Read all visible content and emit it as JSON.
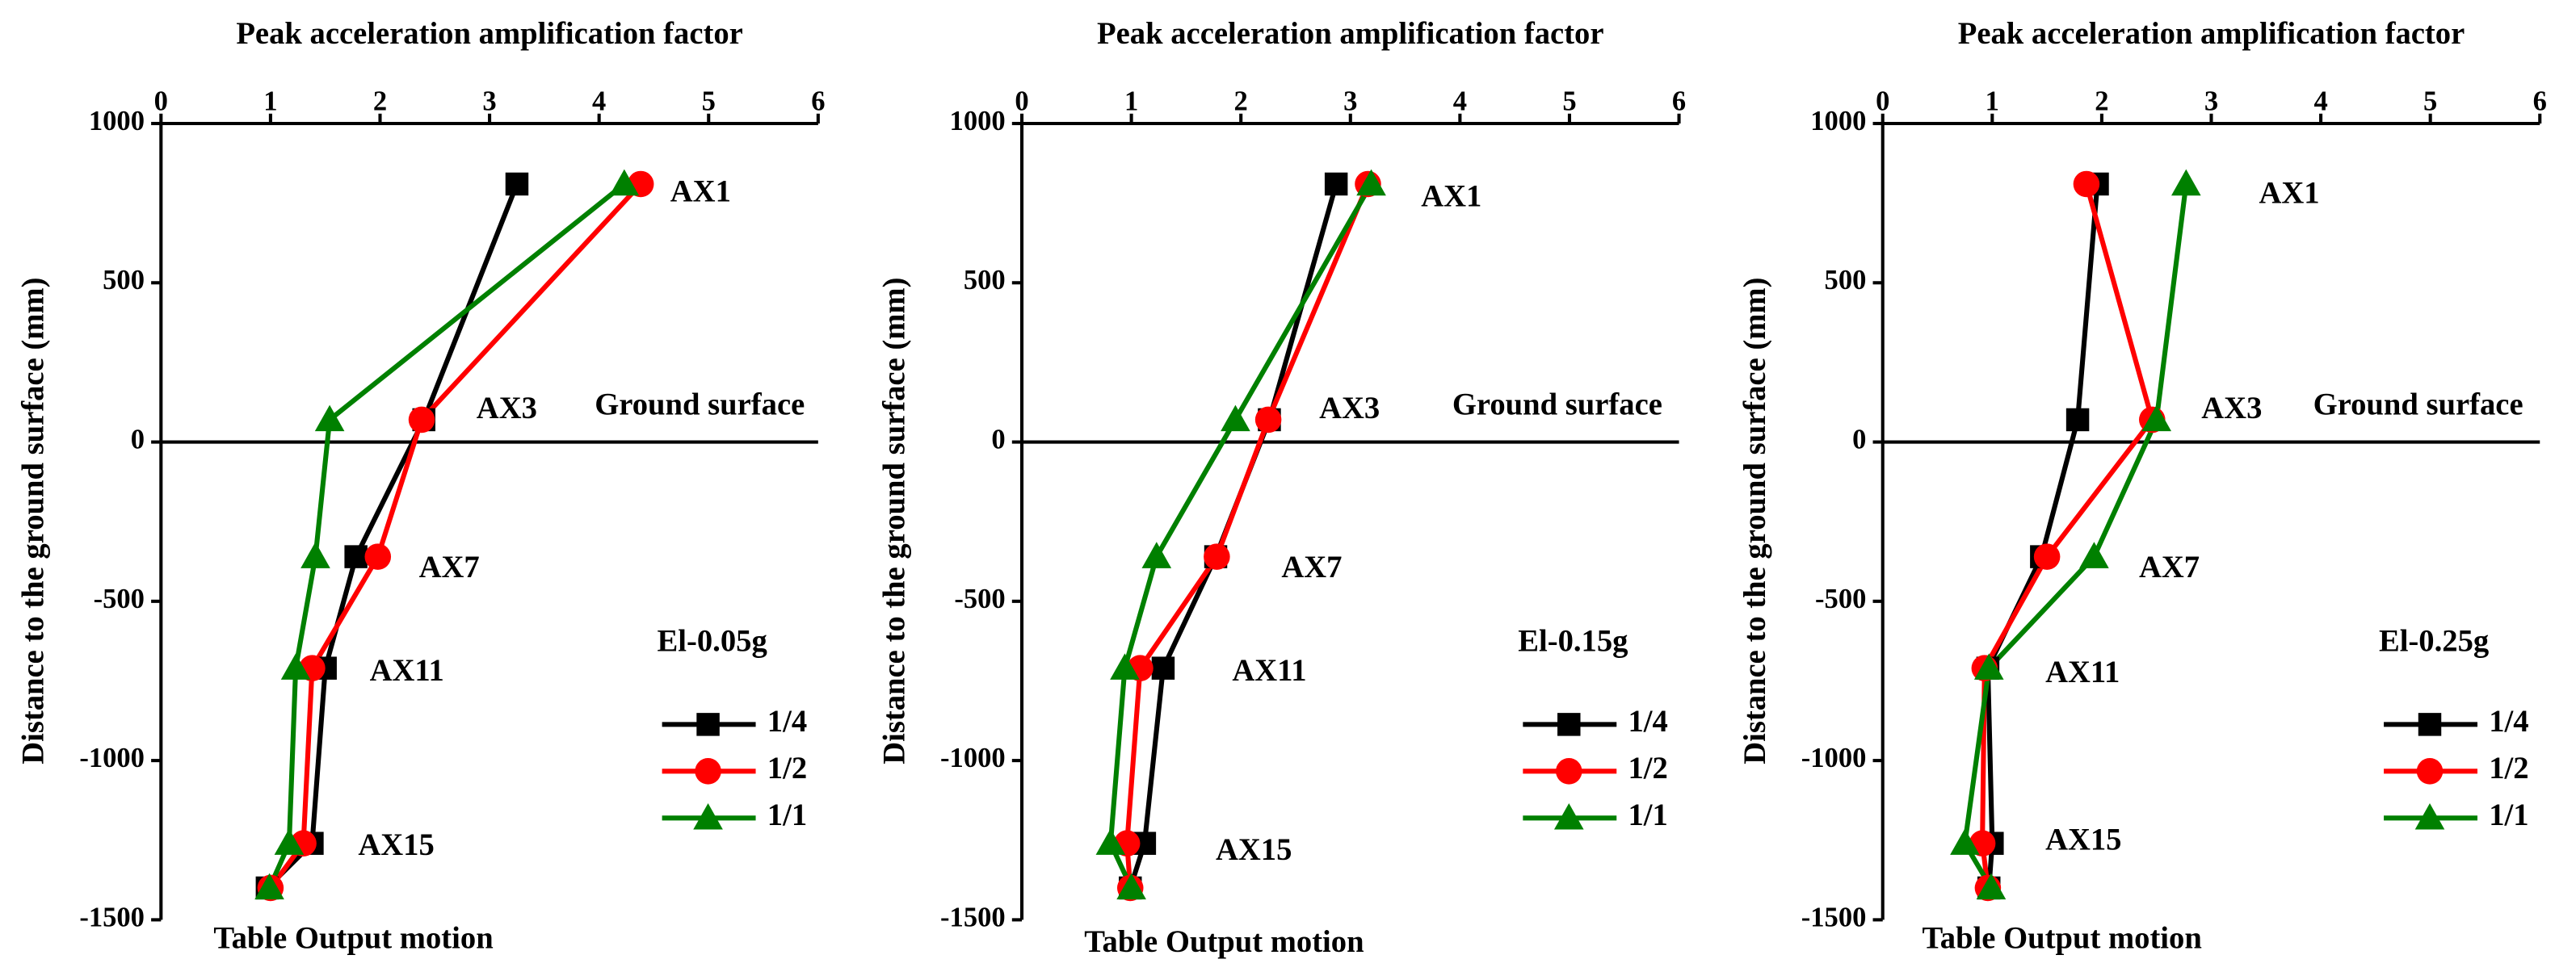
{
  "chart_data": [
    {
      "type": "line",
      "title": "Peak acceleration amplification factor",
      "ylabel": "Distance to the ground surface (mm)",
      "xlim": [
        0,
        6
      ],
      "xticks": [
        0,
        1,
        2,
        3,
        4,
        5,
        6
      ],
      "ylim": [
        -1500,
        1000
      ],
      "yticks": [
        -1500,
        -1000,
        -500,
        0,
        500,
        1000
      ],
      "reference_line": 0,
      "legend_title": "El-0.05g",
      "annotations": [
        "AX1",
        "AX3",
        "AX7",
        "AX11",
        "AX15",
        "Ground surface",
        "Table Output motion"
      ],
      "series": [
        {
          "name": "1/4",
          "color": "#000000",
          "marker": "square",
          "x": [
            3.25,
            2.4,
            1.78,
            1.5,
            1.38,
            0.97
          ],
          "values": [
            810,
            70,
            -360,
            -710,
            -1260,
            -1400
          ]
        },
        {
          "name": "1/2",
          "color": "#ff0000",
          "marker": "circle",
          "x": [
            4.38,
            2.38,
            1.98,
            1.38,
            1.3,
            1.0
          ],
          "values": [
            810,
            70,
            -360,
            -710,
            -1260,
            -1400
          ]
        },
        {
          "name": "1/1",
          "color": "#008000",
          "marker": "triangle",
          "x": [
            4.23,
            1.54,
            1.41,
            1.23,
            1.17,
            0.99
          ],
          "values": [
            810,
            70,
            -360,
            -710,
            -1260,
            -1400
          ]
        }
      ]
    },
    {
      "type": "line",
      "title": "Peak acceleration amplification factor",
      "ylabel": "Distance to the ground surface (mm)",
      "xlim": [
        0,
        6
      ],
      "xticks": [
        0,
        1,
        2,
        3,
        4,
        5,
        6
      ],
      "ylim": [
        -1500,
        1000
      ],
      "yticks": [
        -1500,
        -1000,
        -500,
        0,
        500,
        1000
      ],
      "reference_line": 0,
      "legend_title": "El-0.15g",
      "annotations": [
        "AX1",
        "AX3",
        "AX7",
        "AX11",
        "AX15",
        "Ground surface",
        "Table Output motion"
      ],
      "series": [
        {
          "name": "1/4",
          "color": "#000000",
          "marker": "square",
          "x": [
            2.87,
            2.26,
            1.77,
            1.29,
            1.12,
            0.99
          ],
          "values": [
            810,
            70,
            -360,
            -710,
            -1260,
            -1400
          ]
        },
        {
          "name": "1/2",
          "color": "#ff0000",
          "marker": "circle",
          "x": [
            3.16,
            2.25,
            1.78,
            1.08,
            0.96,
            0.99
          ],
          "values": [
            810,
            70,
            -360,
            -710,
            -1260,
            -1400
          ]
        },
        {
          "name": "1/1",
          "color": "#008000",
          "marker": "triangle",
          "x": [
            3.19,
            1.95,
            1.23,
            0.94,
            0.81,
            1.0
          ],
          "values": [
            810,
            70,
            -360,
            -710,
            -1260,
            -1400
          ]
        }
      ]
    },
    {
      "type": "line",
      "title": "Peak acceleration amplification factor",
      "ylabel": "Distance to the ground surface (mm)",
      "xlim": [
        0,
        6
      ],
      "xticks": [
        0,
        1,
        2,
        3,
        4,
        5,
        6
      ],
      "ylim": [
        -1500,
        1000
      ],
      "yticks": [
        -1500,
        -1000,
        -500,
        0,
        500,
        1000
      ],
      "reference_line": 0,
      "legend_title": "El-0.25g",
      "annotations": [
        "AX1",
        "AX3",
        "AX7",
        "AX11",
        "AX15",
        "Ground surface",
        "Table Output motion"
      ],
      "series": [
        {
          "name": "1/4",
          "color": "#000000",
          "marker": "square",
          "x": [
            1.96,
            1.78,
            1.45,
            0.96,
            1.0,
            0.97
          ],
          "values": [
            810,
            70,
            -360,
            -710,
            -1260,
            -1400
          ]
        },
        {
          "name": "1/2",
          "color": "#ff0000",
          "marker": "circle",
          "x": [
            1.86,
            2.46,
            1.5,
            0.93,
            0.91,
            0.96
          ],
          "values": [
            810,
            70,
            -360,
            -710,
            -1260,
            -1400
          ]
        },
        {
          "name": "1/1",
          "color": "#008000",
          "marker": "triangle",
          "x": [
            2.77,
            2.5,
            1.93,
            0.97,
            0.75,
            0.99
          ],
          "values": [
            810,
            70,
            -360,
            -710,
            -1260,
            -1400
          ]
        }
      ]
    }
  ]
}
